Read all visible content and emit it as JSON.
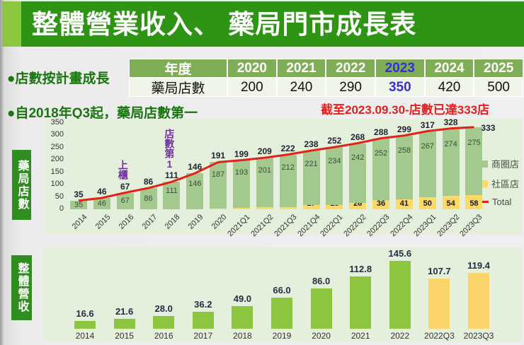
{
  "header": {
    "title": "整體營業收入、 藥局門市成長表"
  },
  "bullets": {
    "bullet1": "●店數按計畫成長",
    "bullet2": "●自2018年Q3起，藥局店數第一",
    "red_note": "截至2023.09.30-店數已達333店"
  },
  "plan_table": {
    "header": [
      "年度",
      "2020",
      "2021",
      "2022",
      "2023",
      "2024",
      "2025"
    ],
    "row_label": "藥局店數",
    "values": [
      "200",
      "240",
      "290",
      "350",
      "420",
      "500"
    ]
  },
  "side_labels": {
    "store_count": "藥局店數",
    "revenue": "整體營收"
  },
  "colors": {
    "banner_green": "#2e9413",
    "banner_lime": "#8dc63f",
    "table_header_green": "#7fae57",
    "highlight_purple": "#3a2fd1",
    "note_red": "#e61e1e",
    "panel_bg": "#e4efdc"
  },
  "chart_data": [
    {
      "type": "bar",
      "subtype": "stacked-bars-with-total-line",
      "title": "藥局店數",
      "categories": [
        "2014",
        "2015",
        "2016",
        "2017",
        "2018",
        "2019",
        "2020",
        "2021Q1",
        "2021Q2",
        "2021Q3",
        "2021Q4",
        "2022Q1",
        "2022Q2",
        "2022Q3",
        "2022Q4",
        "2023Q1",
        "2023Q2",
        "2023Q3"
      ],
      "series": [
        {
          "name": "商圈店",
          "type": "bar",
          "color": "#a4c98e",
          "values": [
            35,
            46,
            67,
            86,
            111,
            146,
            187,
            193,
            201,
            212,
            221,
            234,
            242,
            252,
            258,
            267,
            274,
            275
          ]
        },
        {
          "name": "社區店",
          "type": "bar",
          "color": "#ffd966",
          "values": [
            0,
            0,
            0,
            0,
            0,
            0,
            4,
            6,
            8,
            10,
            17,
            18,
            26,
            36,
            41,
            50,
            54,
            58
          ]
        },
        {
          "name": "Total",
          "type": "line",
          "color": "#e32119",
          "values": [
            35,
            46,
            67,
            86,
            111,
            146,
            191,
            199,
            209,
            222,
            238,
            252,
            268,
            288,
            299,
            317,
            328,
            333
          ]
        }
      ],
      "ylim": [
        0,
        350
      ],
      "yticks": [
        0,
        50,
        100,
        150,
        200,
        250,
        300,
        350
      ],
      "grid": false,
      "legend_position": "right",
      "annotations": [
        {
          "text": "上櫃",
          "index": 2
        },
        {
          "text": "店數第1",
          "index": 4
        }
      ]
    },
    {
      "type": "bar",
      "title": "整體營收",
      "categories": [
        "2014",
        "2015",
        "2016",
        "2017",
        "2018",
        "2019",
        "2020",
        "2021",
        "2022",
        "2022Q3",
        "2023Q3"
      ],
      "values": [
        16.6,
        21.6,
        28.0,
        36.2,
        49.0,
        66.0,
        86.0,
        112.8,
        145.6,
        107.7,
        119.4
      ],
      "value_labels": [
        "16.6",
        "21.6",
        "28.0",
        "36.2",
        "49.0",
        "66.0",
        "86.0",
        "112.8",
        "145.6",
        "107.7",
        "119.4"
      ],
      "bar_color": "#8cc63e",
      "highlight_color": "#fbd56a",
      "highlight_from": 9,
      "grid": false,
      "xlabel": "",
      "ylabel": ""
    }
  ]
}
